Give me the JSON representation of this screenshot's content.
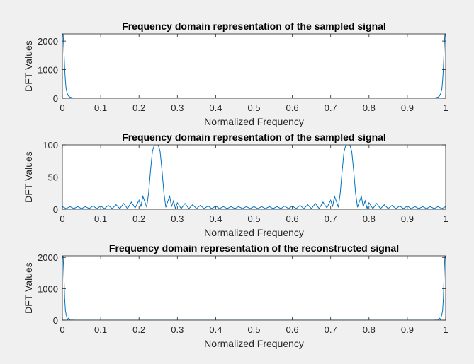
{
  "chart_data": [
    {
      "type": "line",
      "title": "Frequency domain representation of the sampled signal",
      "xlabel": "Normalized Frequency",
      "ylabel": "DFT Values",
      "xlim": [
        0,
        1
      ],
      "ylim": [
        0,
        2250
      ],
      "xticks": [
        "0",
        "0.1",
        "0.2",
        "0.3",
        "0.4",
        "0.5",
        "0.6",
        "0.7",
        "0.8",
        "0.9",
        "1"
      ],
      "yticks": [
        "0",
        "1000",
        "2000"
      ],
      "series": [
        {
          "color": "#0072bd",
          "x": [
            0,
            0.002,
            0.004,
            0.006,
            0.008,
            0.01,
            0.013,
            0.016,
            0.02,
            0.025,
            0.03,
            0.04,
            0.05,
            0.06,
            0.07,
            0.08,
            0.1,
            0.15,
            0.2,
            0.3,
            0.4,
            0.5,
            0.6,
            0.7,
            0.8,
            0.85,
            0.9,
            0.92,
            0.93,
            0.94,
            0.95,
            0.96,
            0.97,
            0.975,
            0.98,
            0.984,
            0.987,
            0.99,
            0.992,
            0.994,
            0.996,
            0.998,
            1
          ],
          "y": [
            2250,
            2250,
            1750,
            1050,
            600,
            320,
            160,
            80,
            40,
            20,
            10,
            6,
            8,
            12,
            6,
            4,
            3,
            3,
            2,
            2,
            2,
            2,
            2,
            2,
            2,
            3,
            3,
            4,
            6,
            12,
            8,
            6,
            10,
            20,
            40,
            80,
            160,
            320,
            600,
            1050,
            1750,
            2250,
            2250
          ]
        }
      ]
    },
    {
      "type": "line",
      "title": "Frequency domain representation of the sampled signal",
      "xlabel": "Normalized Frequency",
      "ylabel": "DFT Values",
      "xlim": [
        0,
        1
      ],
      "ylim": [
        0,
        100
      ],
      "xticks": [
        "0",
        "0.1",
        "0.2",
        "0.3",
        "0.4",
        "0.5",
        "0.6",
        "0.7",
        "0.8",
        "0.9",
        "1"
      ],
      "yticks": [
        "0",
        "50",
        "100"
      ],
      "series": [
        {
          "color": "#0072bd",
          "x": [
            0,
            0.01,
            0.02,
            0.03,
            0.04,
            0.05,
            0.06,
            0.07,
            0.08,
            0.09,
            0.1,
            0.11,
            0.12,
            0.13,
            0.14,
            0.15,
            0.16,
            0.17,
            0.18,
            0.19,
            0.2,
            0.205,
            0.21,
            0.215,
            0.22,
            0.225,
            0.23,
            0.235,
            0.24,
            0.245,
            0.25,
            0.255,
            0.26,
            0.265,
            0.27,
            0.275,
            0.28,
            0.285,
            0.29,
            0.295,
            0.3,
            0.31,
            0.32,
            0.33,
            0.34,
            0.35,
            0.36,
            0.37,
            0.38,
            0.39,
            0.4,
            0.41,
            0.42,
            0.43,
            0.44,
            0.45,
            0.46,
            0.47,
            0.48,
            0.49,
            0.5,
            0.51,
            0.52,
            0.53,
            0.54,
            0.55,
            0.56,
            0.57,
            0.58,
            0.59,
            0.6,
            0.61,
            0.62,
            0.63,
            0.64,
            0.65,
            0.66,
            0.67,
            0.68,
            0.69,
            0.7,
            0.705,
            0.71,
            0.715,
            0.72,
            0.725,
            0.73,
            0.735,
            0.74,
            0.745,
            0.75,
            0.755,
            0.76,
            0.765,
            0.77,
            0.775,
            0.78,
            0.785,
            0.79,
            0.795,
            0.8,
            0.81,
            0.82,
            0.83,
            0.84,
            0.85,
            0.86,
            0.87,
            0.88,
            0.89,
            0.9,
            0.91,
            0.92,
            0.93,
            0.94,
            0.95,
            0.96,
            0.97,
            0.98,
            0.99,
            1
          ],
          "y": [
            4,
            1,
            4,
            1,
            4,
            1,
            4,
            1,
            5,
            1,
            5,
            1,
            6,
            1,
            7,
            1,
            9,
            1,
            11,
            2,
            14,
            4,
            20,
            12,
            3,
            25,
            60,
            90,
            100,
            100,
            100,
            90,
            60,
            25,
            3,
            12,
            20,
            4,
            13,
            1,
            10,
            1,
            9,
            1,
            7,
            1,
            6,
            1,
            5,
            1,
            5,
            1,
            4,
            1,
            4,
            1,
            4,
            1,
            4,
            1,
            4,
            1,
            4,
            1,
            4,
            1,
            4,
            1,
            5,
            1,
            5,
            1,
            6,
            1,
            7,
            1,
            9,
            1,
            11,
            2,
            14,
            4,
            20,
            12,
            3,
            25,
            60,
            90,
            100,
            100,
            100,
            90,
            60,
            25,
            3,
            12,
            20,
            4,
            13,
            1,
            10,
            1,
            9,
            1,
            7,
            1,
            6,
            1,
            5,
            1,
            5,
            1,
            4,
            1,
            4,
            1,
            4,
            1,
            4,
            1,
            4
          ]
        }
      ]
    },
    {
      "type": "line",
      "title": "Frequency domain representation of the reconstructed signal",
      "xlabel": "Normalized Frequency",
      "ylabel": "DFT Values",
      "xlim": [
        0,
        1
      ],
      "ylim": [
        0,
        2050
      ],
      "xticks": [
        "0",
        "0.1",
        "0.2",
        "0.3",
        "0.4",
        "0.5",
        "0.6",
        "0.7",
        "0.8",
        "0.9",
        "1"
      ],
      "yticks": [
        "0",
        "1000",
        "2000"
      ],
      "series": [
        {
          "color": "#0072bd",
          "x": [
            0,
            0.002,
            0.004,
            0.006,
            0.008,
            0.01,
            0.012,
            0.014,
            0.016,
            0.018,
            0.02,
            0.03,
            0.1,
            0.5,
            0.9,
            0.97,
            0.98,
            0.982,
            0.984,
            0.986,
            0.988,
            0.99,
            0.992,
            0.994,
            0.996,
            0.998,
            1
          ],
          "y": [
            2050,
            2050,
            1500,
            700,
            300,
            180,
            80,
            10,
            60,
            30,
            5,
            2,
            1,
            1,
            1,
            2,
            5,
            30,
            60,
            10,
            80,
            180,
            300,
            700,
            1500,
            2050,
            2050
          ]
        }
      ]
    }
  ]
}
